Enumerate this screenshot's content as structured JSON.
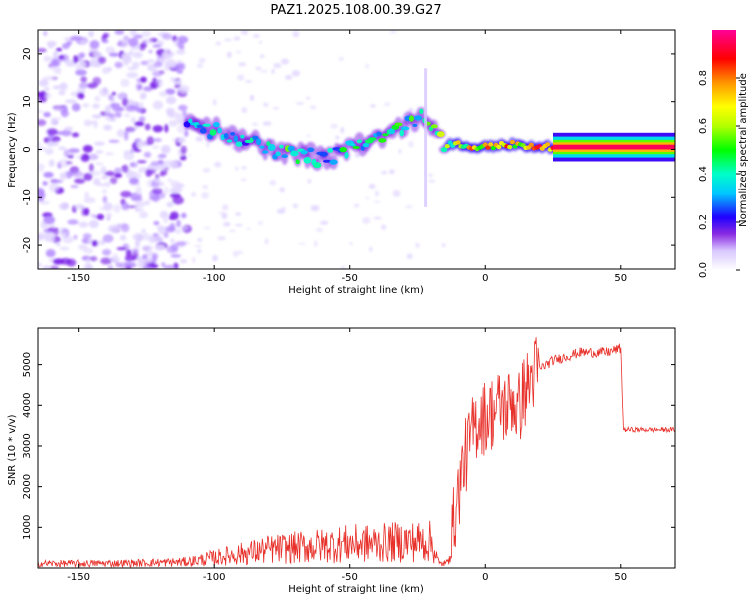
{
  "title": "PAZ1.2025.108.00.39.G27",
  "colors": {
    "snr_line": "#e8302a",
    "ridge_colormap": [
      "#ffffff",
      "#e6dcff",
      "#b48cff",
      "#6a00e0",
      "#0000ff",
      "#00ffff",
      "#00ff00",
      "#ffff00",
      "#ff8800",
      "#ff0000",
      "#ff0088"
    ]
  },
  "chart_data": [
    {
      "type": "heatmap",
      "xlabel": "Height of straight line (km)",
      "ylabel": "Frequency (Hz)",
      "xlim": [
        -165,
        70
      ],
      "ylim": [
        -25,
        25
      ],
      "x_ticks": [
        -150,
        -100,
        -50,
        0,
        50
      ],
      "y_ticks": [
        -20,
        -10,
        0,
        10,
        20
      ],
      "colorbar": {
        "label": "Normalized spectral amplitude",
        "range": [
          0.0,
          1.0
        ],
        "ticks": [
          0.0,
          0.2,
          0.4,
          0.6,
          0.8
        ],
        "tick_labels": [
          "0.0",
          "0.2",
          "0.4",
          "0.6",
          "0.8"
        ]
      },
      "ridge": {
        "x": [
          -110,
          -100,
          -90,
          -80,
          -70,
          -60,
          -50,
          -40,
          -30,
          -22,
          -15,
          -10,
          -5,
          0,
          5,
          10,
          15,
          20,
          30,
          50,
          70
        ],
        "frequency": [
          5,
          4,
          2,
          0,
          -1,
          -2,
          0,
          3,
          5,
          7,
          1,
          1,
          0.5,
          0.5,
          1,
          1,
          0.5,
          0.5,
          0.5,
          0.5,
          0.5
        ],
        "amplitude": [
          0.35,
          0.4,
          0.35,
          0.45,
          0.5,
          0.4,
          0.45,
          0.5,
          0.5,
          0.5,
          0.6,
          0.75,
          0.85,
          0.9,
          0.95,
          0.95,
          0.95,
          0.95,
          0.95,
          0.95,
          0.95
        ]
      },
      "noise_region_x": [
        -165,
        -110
      ],
      "grid": false,
      "legend": "colorbar-right"
    },
    {
      "type": "line",
      "xlabel": "Height of straight line (km)",
      "ylabel": "SNR (10 * v/v)",
      "xlim": [
        -165,
        70
      ],
      "ylim": [
        0,
        5900
      ],
      "x_ticks": [
        -150,
        -100,
        -50,
        0,
        50
      ],
      "y_ticks": [
        1000,
        2000,
        3000,
        4000,
        5000
      ],
      "series": [
        {
          "x": [
            -165,
            -150,
            -130,
            -110,
            -100,
            -90,
            -80,
            -70,
            -60,
            -50,
            -40,
            -30,
            -20,
            -17,
            -14,
            -12,
            -10,
            -8,
            -6,
            -4,
            -2,
            0,
            2,
            4,
            6,
            8,
            10,
            12,
            14,
            16,
            18,
            20,
            25,
            30,
            35,
            40,
            45,
            50,
            51,
            55,
            60,
            65,
            70
          ],
          "y": [
            110,
            110,
            120,
            150,
            250,
            350,
            450,
            500,
            550,
            600,
            600,
            650,
            650,
            100,
            120,
            1000,
            1800,
            2600,
            3000,
            3500,
            3700,
            3700,
            3800,
            3900,
            4000,
            3900,
            4200,
            3800,
            4300,
            4500,
            4800,
            4900,
            5100,
            5200,
            5300,
            5300,
            5300,
            5400,
            3400,
            3400,
            3400,
            3400,
            3400
          ]
        }
      ],
      "grid": false
    }
  ]
}
